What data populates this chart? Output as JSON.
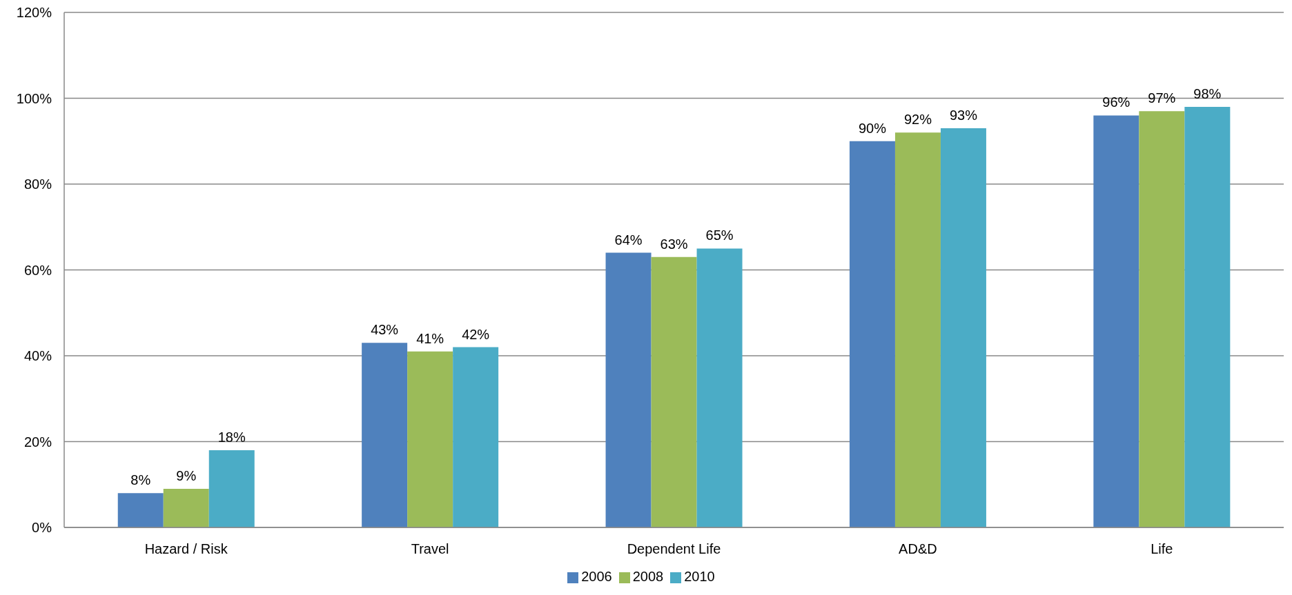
{
  "chart_data": {
    "type": "bar",
    "categories": [
      "Hazard / Risk",
      "Travel",
      "Dependent Life",
      "AD&D",
      "Life"
    ],
    "series": [
      {
        "name": "2006",
        "color": "#4f81bd",
        "values": [
          8,
          43,
          64,
          90,
          96
        ],
        "value_labels": [
          "8%",
          "43%",
          "64%",
          "90%",
          "96%"
        ]
      },
      {
        "name": "2008",
        "color": "#9bbb59",
        "values": [
          9,
          41,
          63,
          92,
          97
        ],
        "value_labels": [
          "9%",
          "41%",
          "63%",
          "92%",
          "97%"
        ]
      },
      {
        "name": "2010",
        "color": "#4bacc6",
        "values": [
          18,
          42,
          65,
          93,
          98
        ],
        "value_labels": [
          "18%",
          "42%",
          "65%",
          "93%",
          "98%"
        ]
      }
    ],
    "ylim": [
      0,
      120
    ],
    "yticks": [
      {
        "value": 0,
        "label": "0%"
      },
      {
        "value": 20,
        "label": "20%"
      },
      {
        "value": 40,
        "label": "40%"
      },
      {
        "value": 60,
        "label": "60%"
      },
      {
        "value": 80,
        "label": "80%"
      },
      {
        "value": 100,
        "label": "100%"
      },
      {
        "value": 120,
        "label": "120%"
      }
    ],
    "grid": "y",
    "legend": "bottom"
  }
}
